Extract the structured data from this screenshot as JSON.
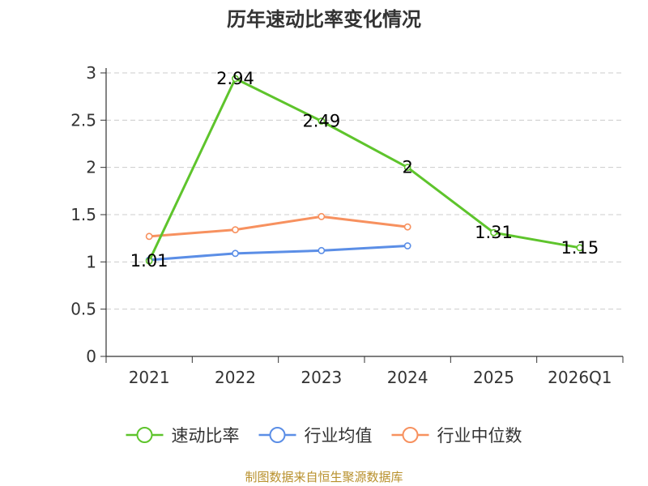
{
  "chart_data": {
    "type": "line",
    "title": "历年速动比率变化情况",
    "categories": [
      "2021",
      "2022",
      "2023",
      "2024",
      "2025",
      "2026Q1"
    ],
    "ylim": [
      0,
      3
    ],
    "yticks": [
      "0",
      "0.5",
      "1",
      "1.5",
      "2",
      "2.5",
      "3"
    ],
    "grid": true,
    "legend_position": "bottom",
    "series": [
      {
        "name": "速动比率",
        "color": "#5ec42c",
        "values": [
          1.01,
          2.94,
          2.49,
          2,
          1.31,
          1.15
        ],
        "labels": [
          "1.01",
          "2.94",
          "2.49",
          "2",
          "1.31",
          "1.15"
        ],
        "show_labels": true
      },
      {
        "name": "行业均值",
        "color": "#5b8ee6",
        "values": [
          1.02,
          1.09,
          1.12,
          1.17,
          null,
          null
        ],
        "show_labels": false
      },
      {
        "name": "行业中位数",
        "color": "#f7915f",
        "values": [
          1.27,
          1.34,
          1.48,
          1.37,
          null,
          null
        ],
        "show_labels": false
      }
    ]
  },
  "source": {
    "text": "制图数据来自恒生聚源数据库",
    "color": "#b8902c"
  }
}
